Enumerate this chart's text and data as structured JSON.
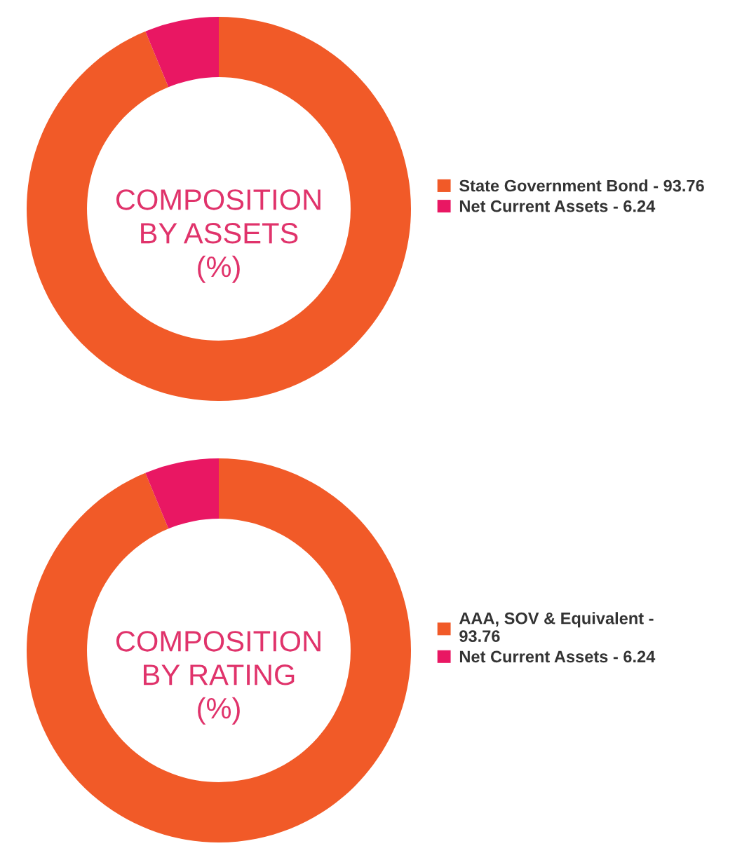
{
  "chart_data": [
    {
      "type": "donut",
      "title": "COMPOSITION\nBY ASSETS\n(%)",
      "categories": [
        "State Government Bond - 93.76",
        "Net Current Assets - 6.24"
      ],
      "values": [
        93.76,
        6.24
      ],
      "colors": [
        "#f15a28",
        "#e91763"
      ],
      "legend": "right"
    },
    {
      "type": "donut",
      "title": "COMPOSITION\nBY RATING\n(%)",
      "categories": [
        "AAA, SOV & Equivalent -\n93.76",
        "Net Current Assets - 6.24"
      ],
      "values": [
        93.76,
        6.24
      ],
      "colors": [
        "#f15a28",
        "#e91763"
      ],
      "legend": "right"
    }
  ]
}
